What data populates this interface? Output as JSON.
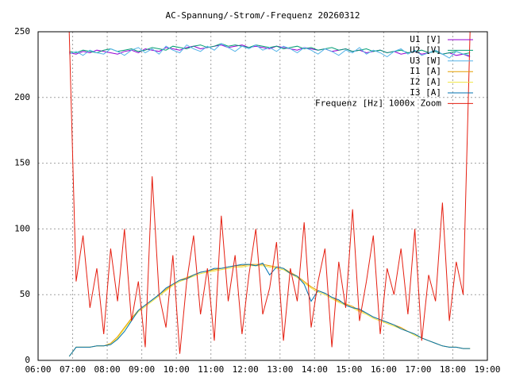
{
  "chart_data": {
    "type": "line",
    "title": "AC-Spannung/-Strom/-Frequenz 20260312",
    "x": [
      6.9,
      7.1,
      7.3,
      7.5,
      7.7,
      7.9,
      8.1,
      8.3,
      8.5,
      8.7,
      8.9,
      9.1,
      9.3,
      9.5,
      9.7,
      9.9,
      10.1,
      10.3,
      10.5,
      10.7,
      10.9,
      11.1,
      11.3,
      11.5,
      11.7,
      11.9,
      12.1,
      12.3,
      12.5,
      12.7,
      12.9,
      13.1,
      13.3,
      13.5,
      13.7,
      13.9,
      14.1,
      14.3,
      14.5,
      14.7,
      14.9,
      15.1,
      15.3,
      15.5,
      15.7,
      15.9,
      16.1,
      16.3,
      16.5,
      16.7,
      16.9,
      17.1,
      17.3,
      17.5,
      17.7,
      17.9,
      18.1,
      18.3,
      18.5
    ],
    "series": [
      {
        "name": "U1 [V]",
        "color": "#9400d3",
        "values": [
          234,
          233,
          235,
          234,
          236,
          235,
          234,
          233,
          235,
          236,
          234,
          237,
          236,
          235,
          238,
          237,
          236,
          238,
          239,
          237,
          238,
          239,
          240,
          238,
          239,
          240,
          238,
          239,
          238,
          237,
          239,
          238,
          237,
          236,
          238,
          237,
          236,
          237,
          235,
          236,
          237,
          235,
          236,
          234,
          235,
          236,
          234,
          235,
          233,
          234,
          235,
          233,
          234,
          235,
          233,
          234,
          232,
          233,
          231
        ]
      },
      {
        "name": "U2 [V]",
        "color": "#009e73",
        "values": [
          235,
          234,
          236,
          235,
          234,
          236,
          237,
          235,
          236,
          237,
          235,
          236,
          238,
          237,
          236,
          239,
          238,
          237,
          239,
          240,
          238,
          239,
          241,
          239,
          240,
          239,
          238,
          240,
          239,
          238,
          239,
          237,
          238,
          239,
          237,
          238,
          236,
          237,
          238,
          236,
          237,
          235,
          236,
          237,
          235,
          236,
          234,
          235,
          236,
          234,
          235,
          236,
          234,
          235,
          233,
          234,
          235,
          233,
          234
        ]
      },
      {
        "name": "U3 [W]",
        "color": "#56b4e9",
        "values": [
          233,
          235,
          232,
          236,
          234,
          233,
          237,
          235,
          232,
          236,
          238,
          234,
          237,
          233,
          239,
          236,
          234,
          240,
          237,
          235,
          239,
          236,
          241,
          238,
          235,
          239,
          237,
          240,
          236,
          238,
          235,
          239,
          237,
          234,
          238,
          236,
          233,
          237,
          235,
          232,
          236,
          234,
          238,
          233,
          236,
          234,
          231,
          235,
          237,
          233,
          236,
          232,
          234,
          236,
          233,
          230,
          235,
          233,
          232
        ]
      },
      {
        "name": "I1 [A]",
        "color": "#e69f00",
        "values": [
          3,
          10,
          10,
          10,
          11,
          11,
          13,
          18,
          25,
          32,
          38,
          42,
          46,
          50,
          54,
          58,
          61,
          63,
          65,
          67,
          68,
          69,
          70,
          71,
          72,
          72,
          73,
          73,
          73,
          72,
          71,
          70,
          67,
          64,
          60,
          56,
          53,
          51,
          48,
          45,
          43,
          41,
          38,
          36,
          33,
          31,
          29,
          27,
          25,
          22,
          20,
          17,
          15,
          13,
          11,
          10,
          10,
          9,
          9
        ]
      },
      {
        "name": "I2 [A]",
        "color": "#f0e442",
        "values": [
          3,
          10,
          10,
          10,
          11,
          11,
          12,
          17,
          24,
          31,
          37,
          41,
          45,
          49,
          53,
          57,
          60,
          62,
          64,
          66,
          67,
          68,
          69,
          70,
          71,
          71,
          72,
          72,
          72,
          71,
          70,
          69,
          66,
          63,
          59,
          55,
          52,
          50,
          47,
          44,
          42,
          40,
          37,
          35,
          32,
          30,
          28,
          26,
          24,
          22,
          19,
          17,
          15,
          13,
          11,
          10,
          10,
          9,
          9
        ]
      },
      {
        "name": "I3 [A]",
        "color": "#0072b2",
        "values": [
          3,
          10,
          10,
          10,
          11,
          11,
          12,
          16,
          22,
          30,
          38,
          42,
          46,
          50,
          55,
          58,
          61,
          62,
          65,
          67,
          68,
          70,
          70,
          71,
          72,
          73,
          73,
          72,
          74,
          65,
          71,
          70,
          66,
          64,
          58,
          45,
          53,
          51,
          48,
          46,
          42,
          40,
          39,
          36,
          33,
          31,
          29,
          27,
          24,
          22,
          20,
          17,
          15,
          13,
          11,
          10,
          10,
          9,
          9
        ]
      },
      {
        "name": "Frequenz [Hz] 1000x Zoom",
        "color": "#e51e10",
        "values": [
          250,
          60,
          95,
          40,
          70,
          20,
          85,
          45,
          100,
          30,
          60,
          10,
          140,
          50,
          25,
          80,
          5,
          60,
          95,
          35,
          70,
          15,
          110,
          45,
          80,
          20,
          65,
          100,
          35,
          55,
          90,
          15,
          70,
          45,
          105,
          25,
          60,
          85,
          10,
          75,
          40,
          115,
          30,
          60,
          95,
          20,
          70,
          50,
          85,
          35,
          100,
          15,
          65,
          45,
          120,
          30,
          75,
          50,
          250
        ]
      }
    ],
    "xlim": [
      6,
      19
    ],
    "xticks": [
      {
        "value": 6,
        "label": "06:00"
      },
      {
        "value": 7,
        "label": "07:00"
      },
      {
        "value": 8,
        "label": "08:00"
      },
      {
        "value": 9,
        "label": "09:00"
      },
      {
        "value": 10,
        "label": "10:00"
      },
      {
        "value": 11,
        "label": "11:00"
      },
      {
        "value": 12,
        "label": "12:00"
      },
      {
        "value": 13,
        "label": "13:00"
      },
      {
        "value": 14,
        "label": "14:00"
      },
      {
        "value": 15,
        "label": "15:00"
      },
      {
        "value": 16,
        "label": "16:00"
      },
      {
        "value": 17,
        "label": "17:00"
      },
      {
        "value": 18,
        "label": "18:00"
      },
      {
        "value": 19,
        "label": "19:00"
      }
    ],
    "ylim": [
      0,
      250
    ],
    "yticks": [
      0,
      50,
      100,
      150,
      200,
      250
    ],
    "grid": true,
    "legend": "top-right"
  }
}
